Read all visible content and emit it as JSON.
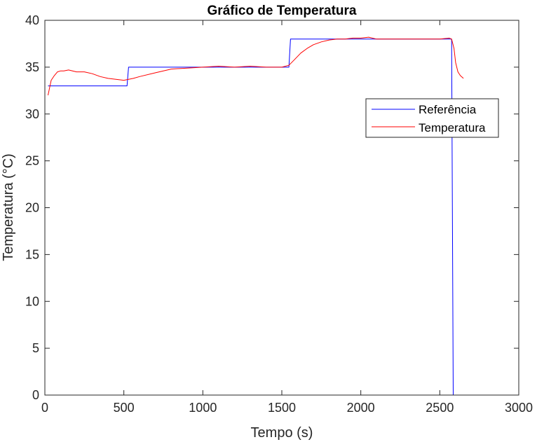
{
  "chart_data": {
    "type": "line",
    "title": "Gráfico de Temperatura",
    "xlabel": "Tempo (s)",
    "ylabel": "Temperatura (°C)",
    "xlim": [
      0,
      3000
    ],
    "ylim": [
      0,
      40
    ],
    "xticks": [
      0,
      500,
      1000,
      1500,
      2000,
      2500,
      3000
    ],
    "xtick_labels": [
      "0",
      "500",
      "1000",
      "1500",
      "2000",
      "2500",
      "3000"
    ],
    "yticks": [
      0,
      5,
      10,
      15,
      20,
      25,
      30,
      35,
      40
    ],
    "ytick_labels": [
      "0",
      "5",
      "10",
      "15",
      "20",
      "25",
      "30",
      "35",
      "40"
    ],
    "grid": false,
    "legend_position": "top-right",
    "series": [
      {
        "name": "Referência",
        "color": "#0000ff",
        "x": [
          20,
          520,
          530,
          1545,
          1555,
          2575,
          2585,
          2650
        ],
        "y": [
          33,
          33,
          35,
          35,
          38,
          38,
          0,
          0
        ]
      },
      {
        "name": "Temperatura",
        "color": "#ff0000",
        "x": [
          20,
          40,
          60,
          80,
          100,
          120,
          150,
          200,
          250,
          300,
          350,
          400,
          450,
          500,
          530,
          560,
          600,
          700,
          800,
          900,
          1000,
          1100,
          1200,
          1300,
          1400,
          1500,
          1545,
          1580,
          1620,
          1660,
          1700,
          1750,
          1800,
          1850,
          1900,
          1950,
          2000,
          2050,
          2100,
          2200,
          2300,
          2400,
          2500,
          2560,
          2575,
          2590,
          2600,
          2615,
          2630,
          2650
        ],
        "y": [
          32.0,
          33.6,
          34.1,
          34.5,
          34.6,
          34.6,
          34.7,
          34.5,
          34.5,
          34.3,
          34.0,
          33.8,
          33.7,
          33.6,
          33.7,
          33.8,
          34.0,
          34.4,
          34.8,
          34.9,
          35.0,
          35.1,
          35.0,
          35.1,
          35.0,
          35.0,
          35.2,
          35.8,
          36.5,
          37.0,
          37.4,
          37.7,
          37.9,
          38.0,
          38.0,
          38.1,
          38.1,
          38.2,
          38.0,
          38.0,
          38.0,
          38.0,
          38.0,
          38.1,
          38.0,
          37.0,
          35.5,
          34.5,
          34.1,
          33.8
        ]
      }
    ]
  }
}
